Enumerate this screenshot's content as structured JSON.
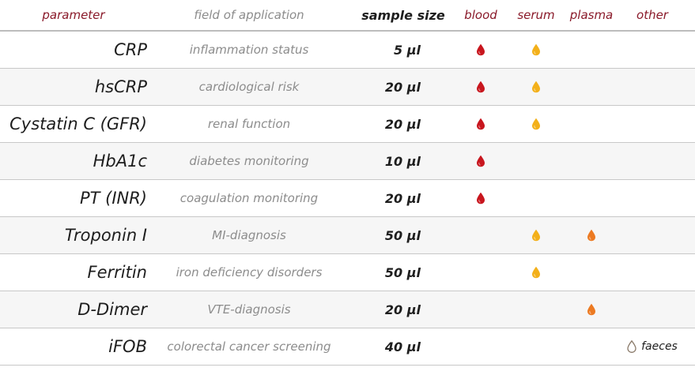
{
  "headers": {
    "parameter": "parameter",
    "field": "field of application",
    "sample_size": "sample size",
    "blood": "blood",
    "serum": "serum",
    "plasma": "plasma",
    "other": "other"
  },
  "colors": {
    "blood": "#c8161e",
    "serum": "#f3b01a",
    "plasma": "#ec7a22",
    "other": "#8a7a6a"
  },
  "icons": {
    "blood": "blood-drop-icon",
    "serum": "serum-drop-icon",
    "plasma": "plasma-drop-icon",
    "other": "faeces-drop-icon"
  },
  "rows": [
    {
      "parameter": "CRP",
      "field": "inflammation status",
      "sample_size": "5 µl",
      "blood": true,
      "serum": true,
      "plasma": false,
      "other": ""
    },
    {
      "parameter": "hsCRP",
      "field": "cardiological risk",
      "sample_size": "20 µl",
      "blood": true,
      "serum": true,
      "plasma": false,
      "other": ""
    },
    {
      "parameter": "Cystatin C (GFR)",
      "field": "renal function",
      "sample_size": "20 µl",
      "blood": true,
      "serum": true,
      "plasma": false,
      "other": ""
    },
    {
      "parameter": "HbA1c",
      "field": "diabetes monitoring",
      "sample_size": "10 µl",
      "blood": true,
      "serum": false,
      "plasma": false,
      "other": ""
    },
    {
      "parameter": "PT (INR)",
      "field": "coagulation monitoring",
      "sample_size": "20 µl",
      "blood": true,
      "serum": false,
      "plasma": false,
      "other": ""
    },
    {
      "parameter": "Troponin I",
      "field": "MI-diagnosis",
      "sample_size": "50 µl",
      "blood": false,
      "serum": true,
      "plasma": true,
      "other": ""
    },
    {
      "parameter": "Ferritin",
      "field": "iron deficiency disorders",
      "sample_size": "50 µl",
      "blood": false,
      "serum": true,
      "plasma": false,
      "other": ""
    },
    {
      "parameter": "D-Dimer",
      "field": "VTE-diagnosis",
      "sample_size": "20 µl",
      "blood": false,
      "serum": false,
      "plasma": true,
      "other": ""
    },
    {
      "parameter": "iFOB",
      "field": "colorectal cancer screening",
      "sample_size": "40 µl",
      "blood": false,
      "serum": false,
      "plasma": false,
      "other": "faeces"
    }
  ]
}
